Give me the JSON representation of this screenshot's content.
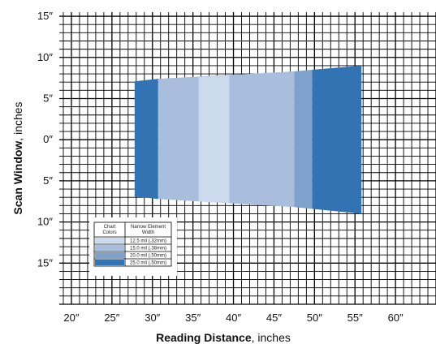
{
  "chart_data": {
    "type": "area",
    "xlabel_bold": "Reading Distance",
    "xlabel_rest": ", inches",
    "ylabel_bold": "Scan Window",
    "ylabel_rest": ", inches",
    "xlim": [
      18.5,
      65
    ],
    "ylim": [
      -20,
      15.5
    ],
    "x_ticks": [
      {
        "value": 20,
        "label": "20″"
      },
      {
        "value": 25,
        "label": "25″"
      },
      {
        "value": 30,
        "label": "30″"
      },
      {
        "value": 35,
        "label": "35″"
      },
      {
        "value": 40,
        "label": "40″"
      },
      {
        "value": 45,
        "label": "45″"
      },
      {
        "value": 50,
        "label": "50″"
      },
      {
        "value": 55,
        "label": "55″"
      },
      {
        "value": 60,
        "label": "60″"
      }
    ],
    "y_ticks": [
      {
        "value": 15,
        "label": "15″"
      },
      {
        "value": 10,
        "label": "10″"
      },
      {
        "value": 5,
        "label": "5″"
      },
      {
        "value": 0,
        "label": "0″"
      },
      {
        "value": -5,
        "label": "5″"
      },
      {
        "value": -10,
        "label": "10″"
      },
      {
        "value": -15,
        "label": "15″"
      }
    ],
    "grid": true,
    "grid_step": 1,
    "series": [
      {
        "name": "25.0 mil (.50mm)",
        "color": "#3274b3",
        "polygon": [
          [
            49.7,
            8.5
          ],
          [
            55.8,
            9.0
          ],
          [
            55.8,
            -9.0
          ],
          [
            49.7,
            -8.4
          ]
        ]
      },
      {
        "name": "20.0 mil (.50mm)",
        "color": "#7fa2cc",
        "polygon": [
          [
            47.5,
            8.3
          ],
          [
            49.7,
            8.5
          ],
          [
            49.7,
            -8.4
          ],
          [
            47.5,
            -8.2
          ]
        ]
      },
      {
        "name": "15.0 mil (.38mm)",
        "color": "#a9bddc",
        "polygon": [
          [
            30.7,
            7.4
          ],
          [
            47.5,
            8.3
          ],
          [
            47.5,
            -8.2
          ],
          [
            30.7,
            -7.2
          ]
        ]
      },
      {
        "name": "12.5 mil (.32mm)",
        "color": "#ccdaee",
        "polygon": [
          [
            35.7,
            7.6
          ],
          [
            39.5,
            7.8
          ],
          [
            39.5,
            -7.7
          ],
          [
            35.7,
            -7.5
          ]
        ]
      },
      {
        "name": "25.0 mil (.50mm)",
        "color": "#3274b3",
        "polygon": [
          [
            27.8,
            7.1
          ],
          [
            30.7,
            7.4
          ],
          [
            30.7,
            -7.2
          ],
          [
            27.8,
            -6.9
          ]
        ]
      }
    ],
    "legend": {
      "placement": "bottom-left",
      "header_col1": "Chart\nColors",
      "header_col2": "Narrow Element\nWidth",
      "rows": [
        {
          "color": "#ccdaee",
          "label": "12.5 mil (.32mm)"
        },
        {
          "color": "#a9bddc",
          "label": "15.0 mil (.38mm)"
        },
        {
          "color": "#7fa2cc",
          "label": "20.0 mil (.50mm)"
        },
        {
          "color": "#3274b3",
          "label": "25.0 mil (.50mm)"
        }
      ]
    }
  }
}
